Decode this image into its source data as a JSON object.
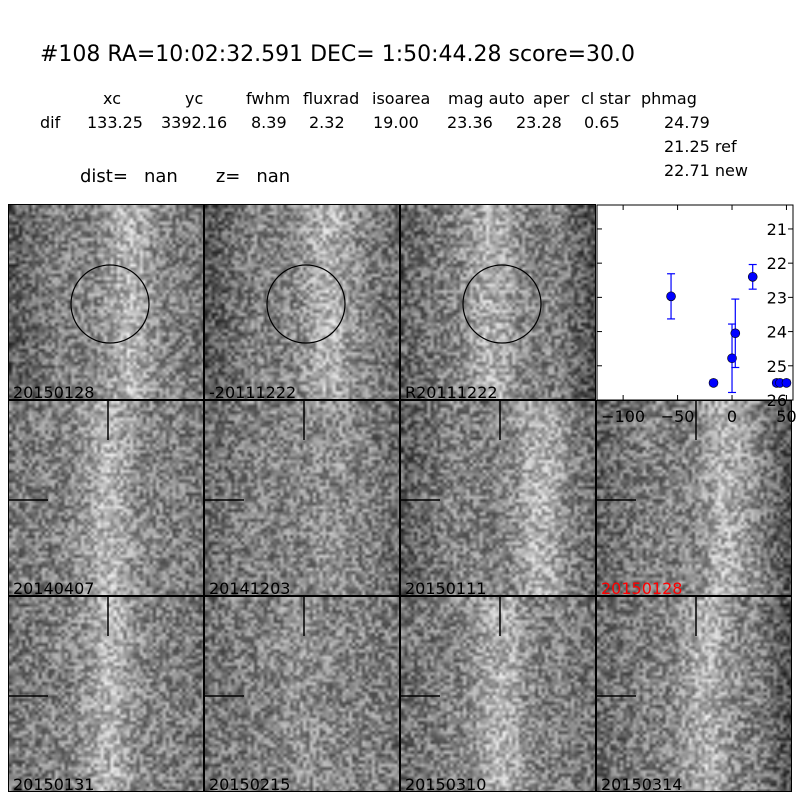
{
  "header": {
    "title": "#108   RA=10:02:32.591 DEC= 1:50:44.28      score=30.0",
    "columns": [
      "xc",
      "yc",
      "fwhm",
      "fluxrad",
      "isoarea",
      "mag auto",
      "aper",
      "cl star",
      "phmag"
    ],
    "row_label": "dif",
    "values": [
      "133.25",
      "3392.16",
      "8.39",
      "2.32",
      "19.00",
      "23.36",
      "23.28",
      "0.65",
      "24.79"
    ],
    "phmag_ref": "21.25 ref",
    "phmag_new": "22.71 new",
    "dist_label": "dist=",
    "dist_value": "nan",
    "z_label": "z=",
    "z_value": "nan"
  },
  "panels": [
    {
      "label": "20150128",
      "highlight": false,
      "marker": "circle"
    },
    {
      "label": "-20111222",
      "highlight": false,
      "marker": "circle"
    },
    {
      "label": "R20111222",
      "highlight": false,
      "marker": "circle"
    },
    {
      "label": "20140407",
      "highlight": false,
      "marker": "crosshair"
    },
    {
      "label": "20141203",
      "highlight": false,
      "marker": "crosshair"
    },
    {
      "label": "20150111",
      "highlight": false,
      "marker": "crosshair"
    },
    {
      "label": "20150128",
      "highlight": true,
      "marker": "crosshair"
    },
    {
      "label": "20150131",
      "highlight": false,
      "marker": "crosshair"
    },
    {
      "label": "20150215",
      "highlight": false,
      "marker": "crosshair"
    },
    {
      "label": "20150310",
      "highlight": false,
      "marker": "crosshair"
    },
    {
      "label": "20150314",
      "highlight": false,
      "marker": "crosshair"
    }
  ],
  "colors": {
    "highlight": "#ff0000",
    "points": "#0000ff"
  },
  "chart_data": {
    "type": "scatter",
    "xlim": [
      -124,
      56
    ],
    "ylim": [
      26,
      20.3
    ],
    "y_inverted": true,
    "xticks": [
      "-100",
      "-50",
      "0",
      "50"
    ],
    "xtick_values": [
      -100,
      -50,
      0,
      50
    ],
    "yticks": [
      "21",
      "22",
      "23",
      "24",
      "25",
      "26"
    ],
    "ytick_values": [
      21,
      22,
      23,
      24,
      25,
      26
    ],
    "points": [
      {
        "x": -56,
        "y": 22.97,
        "err": 0.66
      },
      {
        "x": -17,
        "y": 25.5,
        "err": 0.08
      },
      {
        "x": 0,
        "y": 24.78,
        "err": 1.0
      },
      {
        "x": 3,
        "y": 24.05,
        "err": 1.0
      },
      {
        "x": 19,
        "y": 22.4,
        "err": 0.36
      },
      {
        "x": 41,
        "y": 25.5,
        "err": 0.08
      },
      {
        "x": 44,
        "y": 25.5,
        "err": 0.08
      },
      {
        "x": 50,
        "y": 25.5,
        "err": 0.08
      }
    ]
  }
}
